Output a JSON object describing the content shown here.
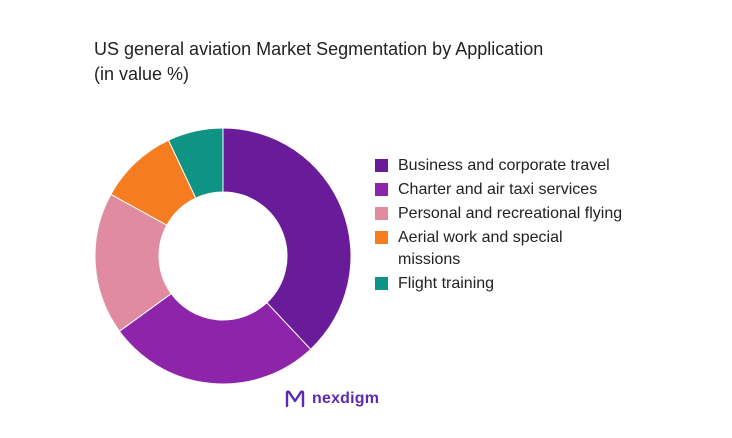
{
  "title_line1": "US general aviation Market Segmentation by Application",
  "title_line2": "(in value %)",
  "chart_data": {
    "type": "pie",
    "donut": true,
    "title": "US general aviation Market Segmentation by Application (in value %)",
    "categories": [
      "Business and corporate travel",
      "Charter and air taxi services",
      "Personal and recreational flying",
      "Aerial work and special missions",
      "Flight training"
    ],
    "values": [
      38,
      27,
      18,
      10,
      7
    ],
    "colors": [
      "#6a1b9a",
      "#8e24aa",
      "#e08ba0",
      "#f57c1f",
      "#0e9384"
    ],
    "legend_position": "right"
  },
  "legend": [
    {
      "label": "Business and corporate travel",
      "color": "#6a1b9a"
    },
    {
      "label": "Charter and air taxi services",
      "color": "#8e24aa"
    },
    {
      "label": "Personal and recreational flying",
      "color": "#e08ba0"
    },
    {
      "label": "Aerial work and special missions",
      "color": "#f57c1f"
    },
    {
      "label": "Flight training",
      "color": "#0e9384"
    }
  ],
  "brand": {
    "name": "nexdigm",
    "icon": "nexdigm-logo-icon",
    "color": "#5c2bb0"
  }
}
